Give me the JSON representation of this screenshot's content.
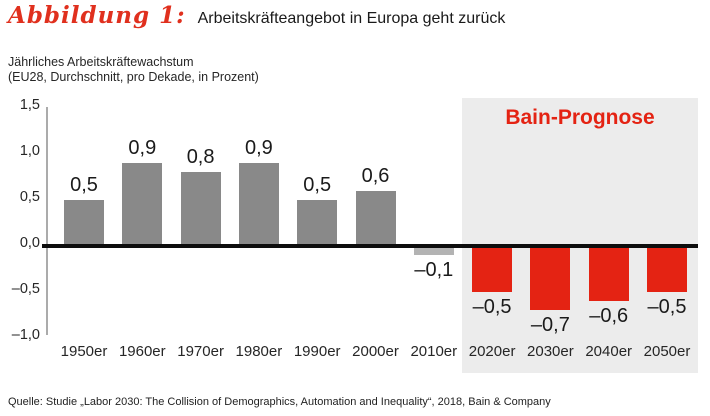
{
  "header": {
    "figure_label": "Abbildung 1:",
    "title": "Arbeitskräfteangebot in Europa geht zurück"
  },
  "subtitle": {
    "line1": "Jährliches Arbeitskräftewachstum",
    "line2": "(EU28, Durchschnitt, pro Dekade, in Prozent)"
  },
  "chart_data": {
    "type": "bar",
    "title": "Arbeitskräfteangebot in Europa geht zurück",
    "subtitle": "Jährliches Arbeitskräftewachstum (EU28, Durchschnitt, pro Dekade, in Prozent)",
    "categories": [
      "1950er",
      "1960er",
      "1970er",
      "1980er",
      "1990er",
      "2000er",
      "2010er",
      "2020er",
      "2030er",
      "2040er",
      "2050er"
    ],
    "values": [
      0.5,
      0.9,
      0.8,
      0.9,
      0.5,
      0.6,
      -0.1,
      -0.5,
      -0.7,
      -0.6,
      -0.5
    ],
    "value_labels": [
      "0,5",
      "0,9",
      "0,8",
      "0,9",
      "0,5",
      "0,6",
      "–0,1",
      "–0,5",
      "–0,7",
      "–0,6",
      "–0,5"
    ],
    "bar_colors": [
      "#898989",
      "#898989",
      "#898989",
      "#898989",
      "#898989",
      "#898989",
      "#b3b3b3",
      "#e42313",
      "#e42313",
      "#e42313",
      "#e42313"
    ],
    "ylim": [
      -1.0,
      1.5
    ],
    "yticks": [
      1.5,
      1.0,
      0.5,
      0.0,
      -0.5,
      -1.0
    ],
    "ytick_labels": [
      "1,5",
      "1,0",
      "0,5",
      "0,0",
      "–0,5",
      "–1,0"
    ],
    "grid": false,
    "forecast_label": "Bain-Prognose",
    "forecast_start_index": 7,
    "colors": {
      "historic_bar": "#898989",
      "historic_bar_light": "#b3b3b3",
      "forecast_bar": "#e42313",
      "forecast_panel": "#ececec",
      "accent_red": "#e0301e",
      "zero_line": "#0d0d0d",
      "axis_line": "#ababab"
    }
  },
  "footer": {
    "source": "Quelle: Studie „Labor 2030: The Collision of Demographics, Automation and Inequality“, 2018, Bain & Company"
  }
}
